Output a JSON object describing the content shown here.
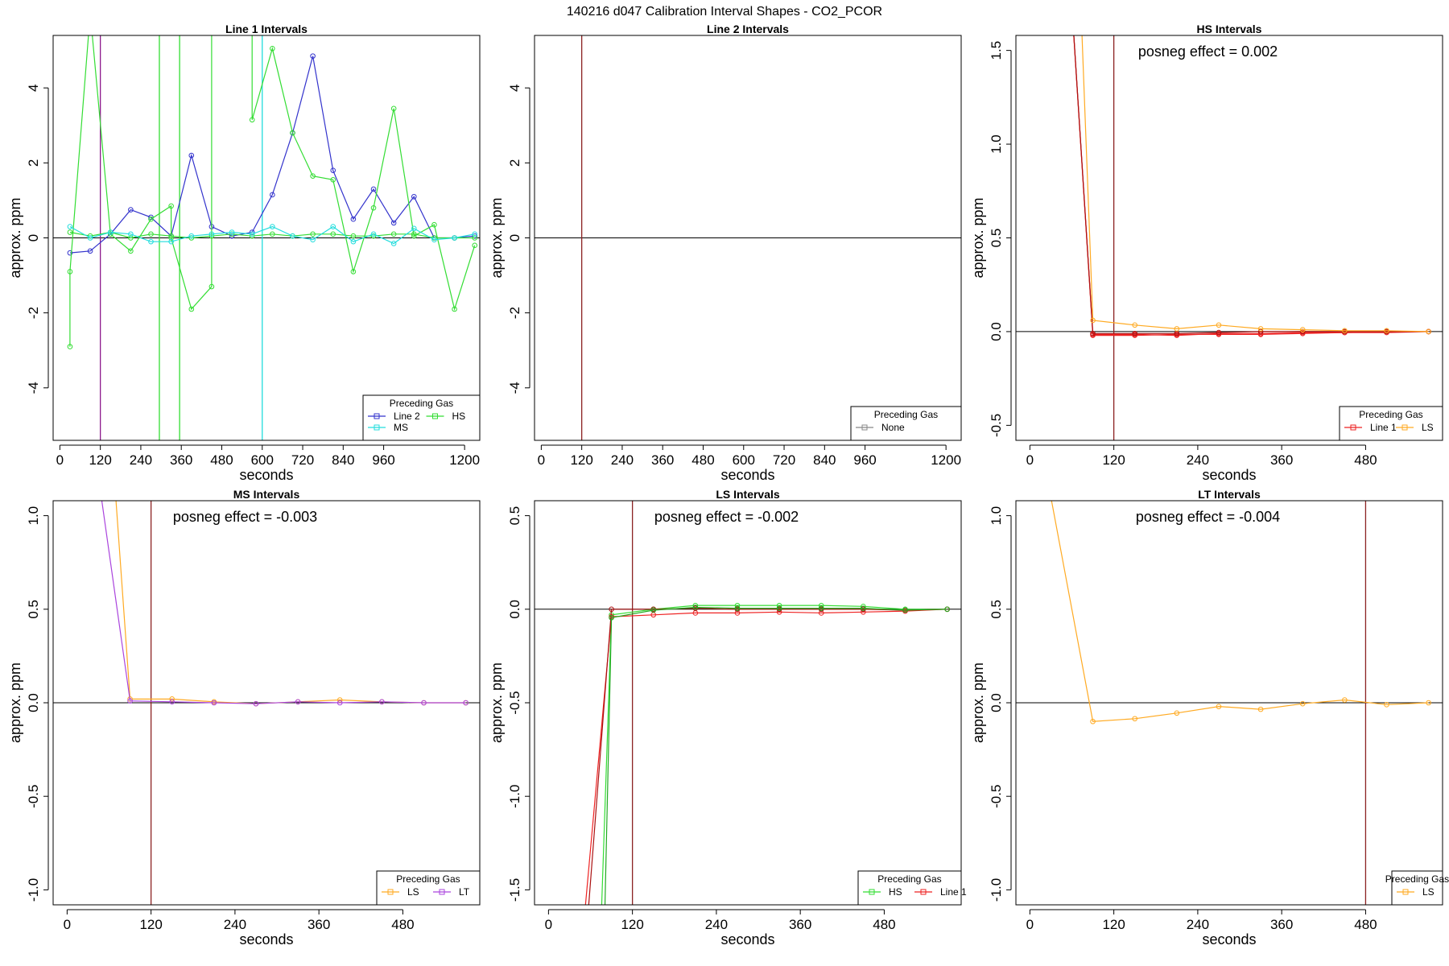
{
  "figure_title": "140216  d047   Calibration Interval Shapes - CO2_PCOR",
  "chart_data": [
    {
      "type": "line",
      "title": "Line 1 Intervals",
      "xlabel": "seconds",
      "ylabel": "approx. ppm",
      "xlim": [
        -20,
        1245
      ],
      "ylim": [
        -5.4,
        5.4
      ],
      "xticks": [
        0,
        120,
        240,
        360,
        480,
        600,
        720,
        840,
        960,
        1200
      ],
      "yticks": [
        -4,
        -2,
        0,
        2,
        4
      ],
      "hlines": [
        0
      ],
      "vlines": [
        {
          "x": 120,
          "color": "#8b1a8b"
        },
        {
          "x": 295,
          "color": "#33dd33"
        },
        {
          "x": 355,
          "color": "#33dd33"
        },
        {
          "x": 600,
          "color": "#22dddd"
        }
      ],
      "annotation": "",
      "legend": {
        "title": "Preceding Gas",
        "position": "bottom-right",
        "entries": [
          "Line 2",
          "HS",
          "MS"
        ],
        "columns": 2
      },
      "series": [
        {
          "name": "Line 2",
          "color": "#3333cc",
          "x": [
            30,
            90,
            150,
            210,
            270,
            330,
            390,
            450,
            510,
            570,
            630,
            690,
            750,
            810,
            870,
            930,
            990,
            1050,
            1110,
            1170,
            1230
          ],
          "y": [
            -0.4,
            -0.35,
            0.1,
            0.75,
            0.55,
            0.05,
            2.2,
            0.3,
            0.05,
            0.15,
            1.15,
            2.8,
            4.85,
            1.8,
            0.5,
            1.3,
            0.4,
            1.1,
            0.0,
            0.0,
            0.05
          ]
        },
        {
          "name": "HS",
          "color": "#33dd33",
          "x": [
            30,
            30,
            90,
            150,
            210,
            270,
            330,
            330,
            390,
            450,
            450,
            570,
            570,
            630,
            690,
            750,
            810,
            870,
            930,
            990,
            1050,
            1110,
            1170,
            1230
          ],
          "y": [
            -2.9,
            -0.9,
            6.0,
            0.1,
            -0.35,
            0.5,
            0.85,
            0.0,
            -1.9,
            -1.3,
            6.0,
            6.0,
            3.15,
            5.05,
            2.8,
            1.65,
            1.55,
            -0.9,
            0.8,
            3.45,
            0.05,
            0.35,
            -1.9,
            -0.2
          ]
        },
        {
          "name": "HS",
          "color": "#33dd33",
          "x": [
            30,
            90,
            150,
            210,
            270,
            330,
            390,
            450,
            510,
            570,
            630,
            690,
            750,
            810,
            870,
            930,
            990,
            1050,
            1110,
            1170,
            1230
          ],
          "y": [
            0.15,
            0.05,
            0.15,
            0.0,
            0.1,
            0.05,
            0.0,
            0.05,
            0.1,
            0.05,
            0.1,
            0.05,
            0.1,
            0.1,
            0.05,
            0.05,
            0.1,
            0.1,
            0.0,
            0.0,
            0.0
          ]
        },
        {
          "name": "MS",
          "color": "#22dddd",
          "x": [
            30,
            90,
            150,
            210,
            270,
            330,
            390,
            450,
            510,
            570,
            630,
            690,
            750,
            810,
            870,
            930,
            990,
            1050,
            1110,
            1170,
            1230
          ],
          "y": [
            0.3,
            0.0,
            0.15,
            0.1,
            -0.1,
            -0.1,
            0.05,
            0.1,
            0.15,
            0.1,
            0.3,
            0.05,
            -0.05,
            0.3,
            -0.1,
            0.1,
            -0.15,
            0.25,
            -0.05,
            0.0,
            0.1
          ]
        }
      ]
    },
    {
      "type": "line",
      "title": "Line 2 Intervals",
      "xlabel": "seconds",
      "ylabel": "approx. ppm",
      "xlim": [
        -20,
        1245
      ],
      "ylim": [
        -5.4,
        5.4
      ],
      "xticks": [
        0,
        120,
        240,
        360,
        480,
        600,
        720,
        840,
        960,
        1200
      ],
      "yticks": [
        -4,
        -2,
        0,
        2,
        4
      ],
      "hlines": [
        0
      ],
      "vlines": [
        {
          "x": 120,
          "color": "#8b2222"
        }
      ],
      "annotation": "",
      "legend": {
        "title": "Preceding Gas",
        "position": "bottom-right",
        "entries": [
          "None"
        ],
        "columns": 1
      },
      "series": [
        {
          "name": "None",
          "color": "#888888",
          "x": [],
          "y": []
        }
      ]
    },
    {
      "type": "line",
      "title": "HS Intervals",
      "xlabel": "seconds",
      "ylabel": "approx. ppm",
      "xlim": [
        -20,
        590
      ],
      "ylim": [
        -0.58,
        1.58
      ],
      "xticks": [
        0,
        120,
        240,
        360,
        480
      ],
      "yticks": [
        -0.5,
        0.0,
        0.5,
        1.0,
        1.5
      ],
      "hlines": [
        0
      ],
      "vlines": [
        {
          "x": 120,
          "color": "#8b2222"
        }
      ],
      "annotation": "posneg effect = 0.002",
      "legend": {
        "title": "Preceding Gas",
        "position": "bottom-right",
        "entries": [
          "Line 1",
          "LS"
        ],
        "columns": 2
      },
      "series": [
        {
          "name": "Line 1",
          "color": "#ee2222",
          "x": [
            30,
            90,
            150,
            210,
            270,
            330,
            390,
            450,
            510,
            570
          ],
          "y": [
            3.5,
            -0.015,
            -0.015,
            -0.02,
            -0.01,
            -0.01,
            -0.005,
            -0.005,
            0.0,
            0.0
          ]
        },
        {
          "name": "Line 1",
          "color": "#ee2222",
          "x": [
            30,
            90,
            150,
            210,
            270,
            330,
            390,
            450,
            510,
            570
          ],
          "y": [
            3.5,
            -0.02,
            -0.02,
            -0.015,
            -0.015,
            -0.015,
            -0.01,
            -0.005,
            -0.005,
            0.0
          ]
        },
        {
          "name": "Line 1",
          "color": "#aa1111",
          "x": [
            30,
            90,
            150,
            210,
            270,
            330,
            390,
            450,
            510,
            570
          ],
          "y": [
            3.5,
            -0.01,
            -0.01,
            -0.01,
            -0.005,
            0.0,
            0.0,
            0.0,
            0.0,
            0.0
          ]
        },
        {
          "name": "LS",
          "color": "#ffaa22",
          "x": [
            60,
            90,
            150,
            210,
            270,
            330,
            390,
            450,
            510,
            570
          ],
          "y": [
            3.0,
            0.06,
            0.035,
            0.015,
            0.035,
            0.015,
            0.01,
            0.005,
            0.005,
            0.0
          ]
        }
      ]
    },
    {
      "type": "line",
      "title": "MS Intervals",
      "xlabel": "seconds",
      "ylabel": "approx. ppm",
      "xlim": [
        -20,
        590
      ],
      "ylim": [
        -1.08,
        1.08
      ],
      "xticks": [
        0,
        120,
        240,
        360,
        480
      ],
      "yticks": [
        -1.0,
        -0.5,
        0.0,
        0.5,
        1.0
      ],
      "hlines": [
        0
      ],
      "vlines": [
        {
          "x": 120,
          "color": "#8b2222"
        }
      ],
      "annotation": "posneg effect = -0.003",
      "legend": {
        "title": "Preceding Gas",
        "position": "bottom-right",
        "entries": [
          "LS",
          "LT"
        ],
        "columns": 2
      },
      "series": [
        {
          "name": "LS",
          "color": "#ffaa22",
          "x": [
            60,
            90,
            150,
            210,
            270,
            330,
            390,
            450,
            510,
            570
          ],
          "y": [
            1.6,
            0.02,
            0.02,
            0.005,
            -0.005,
            0.005,
            0.015,
            0.005,
            0.0,
            0.0
          ]
        },
        {
          "name": "LT",
          "color": "#aa44dd",
          "x": [
            30,
            90,
            150,
            210,
            270,
            330,
            390,
            450,
            510,
            570
          ],
          "y": [
            1.6,
            0.01,
            0.005,
            0.0,
            -0.005,
            0.005,
            0.0,
            0.005,
            0.0,
            0.0
          ]
        }
      ]
    },
    {
      "type": "line",
      "title": "LS Intervals",
      "xlabel": "seconds",
      "ylabel": "approx. ppm",
      "xlim": [
        -20,
        590
      ],
      "ylim": [
        -1.58,
        0.58
      ],
      "xticks": [
        0,
        120,
        240,
        360,
        480
      ],
      "yticks": [
        -1.5,
        -1.0,
        -0.5,
        0.0,
        0.5
      ],
      "hlines": [
        0
      ],
      "vlines": [
        {
          "x": 120,
          "color": "#8b2222"
        }
      ],
      "annotation": "posneg effect = -0.002",
      "legend": {
        "title": "Preceding Gas",
        "position": "bottom-right",
        "entries": [
          "HS",
          "Line 1"
        ],
        "columns": 2
      },
      "series": [
        {
          "name": "HS",
          "color": "#33dd33",
          "x": [
            75,
            90,
            150,
            210,
            270,
            330,
            390,
            450,
            510,
            570
          ],
          "y": [
            -1.7,
            -0.03,
            0.0,
            0.02,
            0.02,
            0.02,
            0.02,
            0.015,
            0.0,
            0.0
          ]
        },
        {
          "name": "Line 1",
          "color": "#ee2222",
          "x": [
            50,
            90,
            150,
            210,
            270,
            330,
            390,
            450,
            510,
            570
          ],
          "y": [
            -1.7,
            -0.04,
            -0.03,
            -0.02,
            -0.02,
            -0.015,
            -0.02,
            -0.015,
            -0.01,
            0.0
          ]
        },
        {
          "name": "Line 1",
          "color": "#aa1111",
          "x": [
            55,
            90,
            150,
            210,
            270,
            330,
            390,
            450,
            510,
            570
          ],
          "y": [
            -1.7,
            0.0,
            0.0,
            0.005,
            0.0,
            0.0,
            0.0,
            0.0,
            -0.005,
            0.0
          ]
        },
        {
          "name": "HS",
          "color": "#22aa22",
          "x": [
            80,
            90,
            150,
            210,
            270,
            330,
            390,
            450,
            510,
            570
          ],
          "y": [
            -1.7,
            -0.045,
            -0.005,
            0.01,
            0.005,
            0.005,
            0.005,
            0.005,
            -0.005,
            0.0
          ]
        }
      ]
    },
    {
      "type": "line",
      "title": "LT Intervals",
      "xlabel": "seconds",
      "ylabel": "approx. ppm",
      "xlim": [
        -20,
        590
      ],
      "ylim": [
        -1.08,
        1.08
      ],
      "xticks": [
        0,
        120,
        240,
        360,
        480
      ],
      "yticks": [
        -1.0,
        -0.5,
        0.0,
        0.5,
        1.0
      ],
      "hlines": [
        0
      ],
      "vlines": [
        {
          "x": 480,
          "color": "#8b2222"
        }
      ],
      "annotation": "posneg effect = -0.004",
      "legend": {
        "title": "Preceding Gas",
        "position": "bottom-right",
        "entries": [
          "LS"
        ],
        "columns": 1
      },
      "series": [
        {
          "name": "LS",
          "color": "#ffaa22",
          "x": [
            30,
            90,
            150,
            210,
            270,
            330,
            390,
            450,
            510,
            570
          ],
          "y": [
            1.1,
            -0.1,
            -0.085,
            -0.055,
            -0.02,
            -0.035,
            -0.005,
            0.015,
            -0.01,
            0.0
          ]
        }
      ]
    }
  ]
}
